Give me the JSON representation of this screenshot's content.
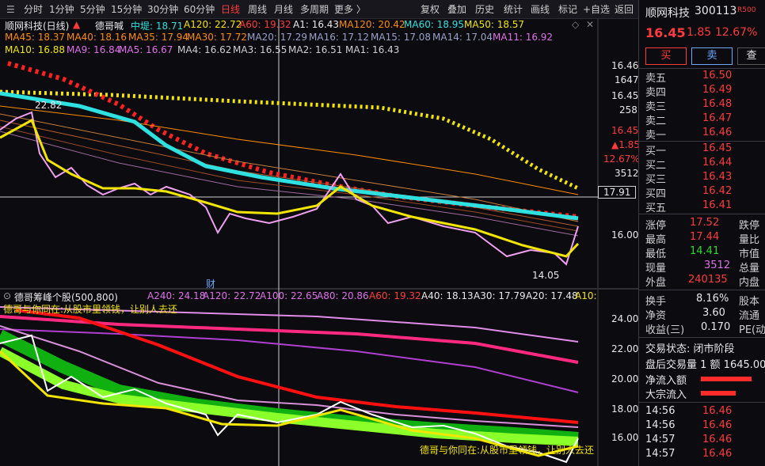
{
  "toolbar": {
    "periods": [
      "分时",
      "1分钟",
      "5分钟",
      "15分钟",
      "30分钟",
      "60分钟",
      "日线",
      "周线",
      "月线",
      "多周期",
      "更多 〉"
    ],
    "tools": [
      "复权",
      "叠加",
      "历史",
      "统计",
      "画线",
      "标记",
      "+自选",
      "返回"
    ],
    "active_period": "日线"
  },
  "chart_header": {
    "title": "顺网科技(日线)",
    "indicator": "德哥喊",
    "mid": "中堤: 18.71",
    "a120": "A120: 22.72",
    "a60": "A60: 19.32",
    "a1": "A1: 16.43",
    "ma120": "MA120: 20.42",
    "ma60": "MA60: 18.95",
    "ma50": "MA50: 18.57"
  },
  "ma_row1": [
    "MA45: 18.37",
    "MA40: 18.16",
    "MA35: 17.94",
    "MA30: 17.72",
    "MA20: 17.29",
    "MA16: 17.12",
    "MA15: 17.08",
    "MA14: 17.04",
    "MA11: 16.92"
  ],
  "ma_row2": [
    "MA10: 16.88",
    "MA9: 16.84",
    "MA5: 16.67",
    "MA4: 16.62",
    "MA3: 16.55",
    "MA2: 16.51",
    "MA1: 16.43"
  ],
  "price_axis": {
    "p1": "16.46",
    "v1": "1647",
    "p2": "16.45",
    "v2": "258",
    "p3": "16.45",
    "chg": "▲1.85",
    "pct": "12.67%",
    "vol": "3512",
    "cross": "17.91",
    "low_tick": "16.00"
  },
  "annotations": {
    "high": "22.82",
    "low": "14.05",
    "cai": "财"
  },
  "lower": {
    "title": "德哥筹峰个股(500,800)",
    "a240": "A240: 24.18",
    "a120": "A120: 22.72",
    "a100": "A100: 22.65",
    "a80": "A80: 20.86",
    "a60": "A60: 19.32",
    "a40": "A40: 18.13",
    "a30": "A30: 17.79",
    "a20": "A20: 17.48",
    "a10": "A10:",
    "note": "德哥与你同在:从股市里领钱，让别人去还",
    "note2": "德哥与你同在:从股市里领钱，让别人去还",
    "ticks": [
      "24.00",
      "22.00",
      "20.00",
      "18.00",
      "16.00"
    ]
  },
  "quote": {
    "name": "顺网科技",
    "code": "300113",
    "badge": "R500",
    "price": "16.45",
    "change": "1.85",
    "pct": "12.67%",
    "buy_btn": "买",
    "sell_btn": "卖",
    "more_btn": "查",
    "asks": [
      {
        "l": "卖五",
        "p": "16.50"
      },
      {
        "l": "卖四",
        "p": "16.49"
      },
      {
        "l": "卖三",
        "p": "16.48"
      },
      {
        "l": "卖二",
        "p": "16.47"
      },
      {
        "l": "卖一",
        "p": "16.46"
      }
    ],
    "bids": [
      {
        "l": "买一",
        "p": "16.45"
      },
      {
        "l": "买二",
        "p": "16.44"
      },
      {
        "l": "买三",
        "p": "16.43"
      },
      {
        "l": "买四",
        "p": "16.42"
      },
      {
        "l": "买五",
        "p": "16.41"
      }
    ],
    "stats": [
      {
        "l": "涨停",
        "v": "17.52",
        "r": "跌停"
      },
      {
        "l": "最高",
        "v": "17.44",
        "r": "量比"
      },
      {
        "l": "最低",
        "v": "14.41",
        "r": "市值"
      },
      {
        "l": "现量",
        "v": "3512",
        "r": "总量"
      },
      {
        "l": "外盘",
        "v": "240135",
        "r": "内盘"
      }
    ],
    "stats2": [
      {
        "l": "换手",
        "v": "8.16%",
        "r": "股本"
      },
      {
        "l": "净资",
        "v": "3.60",
        "r": "流通"
      },
      {
        "l": "收益(三)",
        "v": "0.170",
        "r": "PE(动"
      }
    ],
    "state": "交易状态: 闭市阶段",
    "after": "盘后交易量 1 额 1645.00",
    "flow1": "净流入额",
    "flow2": "大宗流入",
    "ticks": [
      {
        "t": "14:56",
        "p": "16.46"
      },
      {
        "t": "14:56",
        "p": "16.46"
      },
      {
        "t": "14:57",
        "p": "16.46"
      },
      {
        "t": "14:57",
        "p": "16.46"
      }
    ]
  }
}
